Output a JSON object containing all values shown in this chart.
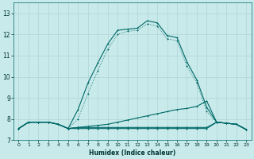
{
  "xlabel": "Humidex (Indice chaleur)",
  "background_color": "#c8eaea",
  "grid_color": "#b0d4d4",
  "line_color": "#006868",
  "xlim": [
    -0.5,
    23.5
  ],
  "ylim": [
    7.0,
    13.5
  ],
  "yticks": [
    7,
    8,
    9,
    10,
    11,
    12,
    13
  ],
  "xticks": [
    0,
    1,
    2,
    3,
    4,
    5,
    6,
    7,
    8,
    9,
    10,
    11,
    12,
    13,
    14,
    15,
    16,
    17,
    18,
    19,
    20,
    21,
    22,
    23
  ],
  "line1_x": [
    0,
    1,
    2,
    3,
    4,
    5,
    6,
    7,
    8,
    9,
    10,
    11,
    12,
    13,
    14,
    15,
    16,
    17,
    18,
    19,
    20,
    21,
    22,
    23
  ],
  "line1_y": [
    7.55,
    7.85,
    7.85,
    7.85,
    7.75,
    7.55,
    8.45,
    9.7,
    10.65,
    11.55,
    12.2,
    12.25,
    12.3,
    12.65,
    12.55,
    11.95,
    11.85,
    10.7,
    9.85,
    8.55,
    7.85,
    7.8,
    7.75,
    7.5
  ],
  "line2_x": [
    0,
    1,
    2,
    3,
    4,
    5,
    6,
    7,
    8,
    9,
    10,
    11,
    12,
    13,
    14,
    15,
    16,
    17,
    18,
    19,
    20,
    21,
    22,
    23
  ],
  "line2_y": [
    7.55,
    7.85,
    7.85,
    7.85,
    7.75,
    7.55,
    7.6,
    7.65,
    7.7,
    7.75,
    7.85,
    7.95,
    8.05,
    8.15,
    8.25,
    8.35,
    8.45,
    8.5,
    8.6,
    8.85,
    7.85,
    7.8,
    7.75,
    7.5
  ],
  "line3_x": [
    0,
    1,
    2,
    3,
    4,
    5,
    6,
    7,
    8,
    9,
    10,
    11,
    12,
    13,
    14,
    15,
    16,
    17,
    18,
    19,
    20,
    21,
    22,
    23
  ],
  "line3_y": [
    7.55,
    7.85,
    7.85,
    7.85,
    7.75,
    7.55,
    7.6,
    7.6,
    7.6,
    7.6,
    7.6,
    7.6,
    7.6,
    7.6,
    7.6,
    7.6,
    7.6,
    7.6,
    7.6,
    7.6,
    7.85,
    7.8,
    7.75,
    7.5
  ],
  "line4_x": [
    0,
    1,
    2,
    3,
    4,
    5,
    6,
    7,
    8,
    9,
    10,
    11,
    12,
    13,
    14,
    15,
    16,
    17,
    18,
    19,
    20,
    21,
    22,
    23
  ],
  "line4_y": [
    7.55,
    7.85,
    7.85,
    7.85,
    7.75,
    7.55,
    7.55,
    7.55,
    7.55,
    7.55,
    7.55,
    7.55,
    7.55,
    7.55,
    7.55,
    7.55,
    7.55,
    7.55,
    7.55,
    7.55,
    7.85,
    7.8,
    7.75,
    7.5
  ],
  "dotted_x": [
    0,
    1,
    2,
    3,
    4,
    5,
    6,
    7,
    8,
    9,
    10,
    11,
    12,
    13,
    14,
    15,
    16,
    17,
    18,
    19,
    20,
    21,
    22,
    23
  ],
  "dotted_y": [
    7.55,
    7.85,
    7.85,
    7.85,
    7.75,
    7.55,
    8.0,
    9.2,
    10.3,
    11.3,
    12.0,
    12.15,
    12.2,
    12.5,
    12.4,
    11.8,
    11.7,
    10.5,
    9.7,
    8.35,
    7.85,
    7.8,
    7.75,
    7.5
  ]
}
